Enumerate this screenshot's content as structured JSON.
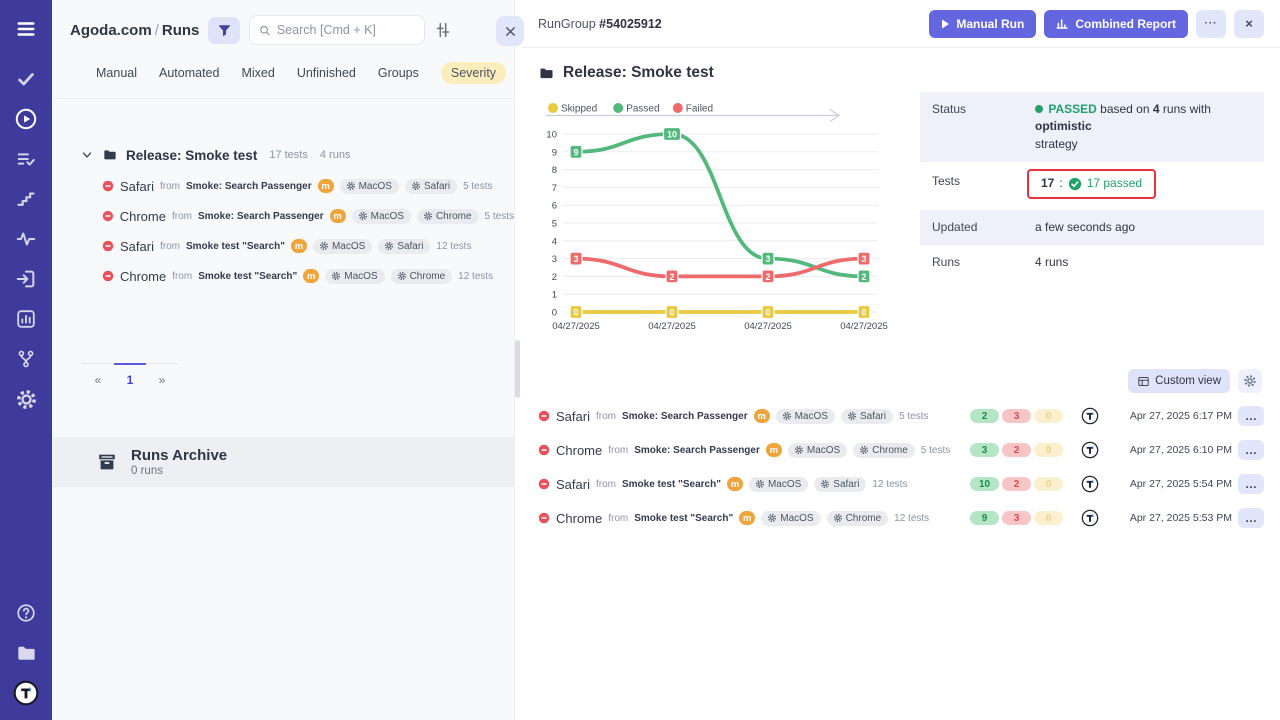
{
  "labels": {
    "from": "from"
  },
  "sidebar": {
    "icons": [
      "menu",
      "tasks-check",
      "runs-play",
      "test-list",
      "steps",
      "pulse",
      "import",
      "analytics",
      "branch",
      "settings",
      "help",
      "projects",
      "logo"
    ]
  },
  "left_panel": {
    "breadcrumb": {
      "project": "Agoda.com",
      "separator": "/",
      "page": "Runs"
    },
    "search_placeholder": "Search [Cmd + K]",
    "tabs": {
      "manual": "Manual",
      "automated": "Automated",
      "mixed": "Mixed",
      "unfinished": "Unfinished",
      "groups": "Groups",
      "severity": "Severity"
    },
    "group": {
      "title": "Release: Smoke test",
      "tests_count": "17 tests",
      "runs_count": "4 runs"
    },
    "runs": [
      {
        "browser": "Safari",
        "source": "Smoke: Search Passenger",
        "badge": "m",
        "env_os": "MacOS",
        "env_browser": "Safari",
        "tests": "5 tests"
      },
      {
        "browser": "Chrome",
        "source": "Smoke: Search Passenger",
        "badge": "m",
        "env_os": "MacOS",
        "env_browser": "Chrome",
        "tests": "5 tests"
      },
      {
        "browser": "Safari",
        "source": "Smoke test \"Search\"",
        "badge": "m",
        "env_os": "MacOS",
        "env_browser": "Safari",
        "tests": "12 tests"
      },
      {
        "browser": "Chrome",
        "source": "Smoke test \"Search\"",
        "badge": "m",
        "env_os": "MacOS",
        "env_browser": "Chrome",
        "tests": "12 tests"
      }
    ],
    "pagination": {
      "prev": "«",
      "current": "1",
      "next": "»"
    },
    "archive": {
      "title": "Runs Archive",
      "count": "0 runs"
    }
  },
  "right_panel": {
    "header": {
      "group_label": "RunGroup",
      "group_id": "#54025912",
      "manual_run": "Manual Run",
      "combined_report": "Combined Report",
      "more": "···",
      "close": "×"
    },
    "title": "Release: Smoke test",
    "summary": {
      "status": {
        "label": "Status",
        "value": "PASSED",
        "text_1": "based on",
        "runs_bold": "4",
        "text_2": "runs with",
        "strategy_bold": "optimistic",
        "text_3": "strategy"
      },
      "tests": {
        "label": "Tests",
        "total": "17",
        "separator": ":",
        "passed": "17 passed"
      },
      "updated": {
        "label": "Updated",
        "value": "a few seconds ago"
      },
      "runs": {
        "label": "Runs",
        "value": "4 runs"
      }
    },
    "custom_view": "Custom view",
    "runs": [
      {
        "browser": "Safari",
        "source": "Smoke: Search Passenger",
        "badge": "m",
        "env_os": "MacOS",
        "env_browser": "Safari",
        "tests": "5 tests",
        "passed": "2",
        "failed": "3",
        "skipped": "0",
        "date": "Apr 27, 2025 6:17 PM"
      },
      {
        "browser": "Chrome",
        "source": "Smoke: Search Passenger",
        "badge": "m",
        "env_os": "MacOS",
        "env_browser": "Chrome",
        "tests": "5 tests",
        "passed": "3",
        "failed": "2",
        "skipped": "0",
        "date": "Apr 27, 2025 6:10 PM"
      },
      {
        "browser": "Safari",
        "source": "Smoke test \"Search\"",
        "badge": "m",
        "env_os": "MacOS",
        "env_browser": "Safari",
        "tests": "12 tests",
        "passed": "10",
        "failed": "2",
        "skipped": "0",
        "date": "Apr 27, 2025 5:54 PM"
      },
      {
        "browser": "Chrome",
        "source": "Smoke test \"Search\"",
        "badge": "m",
        "env_os": "MacOS",
        "env_browser": "Chrome",
        "tests": "12 tests",
        "passed": "9",
        "failed": "3",
        "skipped": "0",
        "date": "Apr 27, 2025 5:53 PM"
      }
    ]
  },
  "chart_data": {
    "type": "line",
    "title": "",
    "x": [
      "04/27/2025",
      "04/27/2025",
      "04/27/2025",
      "04/27/2025"
    ],
    "series": [
      {
        "name": "Skipped",
        "color": "#e9c93f",
        "values": [
          0,
          0,
          0,
          0
        ]
      },
      {
        "name": "Passed",
        "color": "#53b87b",
        "values": [
          9,
          10,
          3,
          2
        ]
      },
      {
        "name": "Failed",
        "color": "#ef6a6a",
        "values": [
          3,
          2,
          2,
          3
        ]
      }
    ],
    "ylim": [
      0,
      10
    ],
    "yticks": [
      0,
      1,
      2,
      3,
      4,
      5,
      6,
      7,
      8,
      9,
      10
    ],
    "grid": true,
    "legend_position": "top",
    "point_labels": true
  },
  "colors": {
    "accent": "#6466e0",
    "sidebar": "#3e3b9c",
    "passed": "#22a06b",
    "failed": "#e8505b",
    "skipped": "#e9c93f",
    "highlight_border": "#e8323c",
    "severity_badge": "#fbeebc"
  }
}
